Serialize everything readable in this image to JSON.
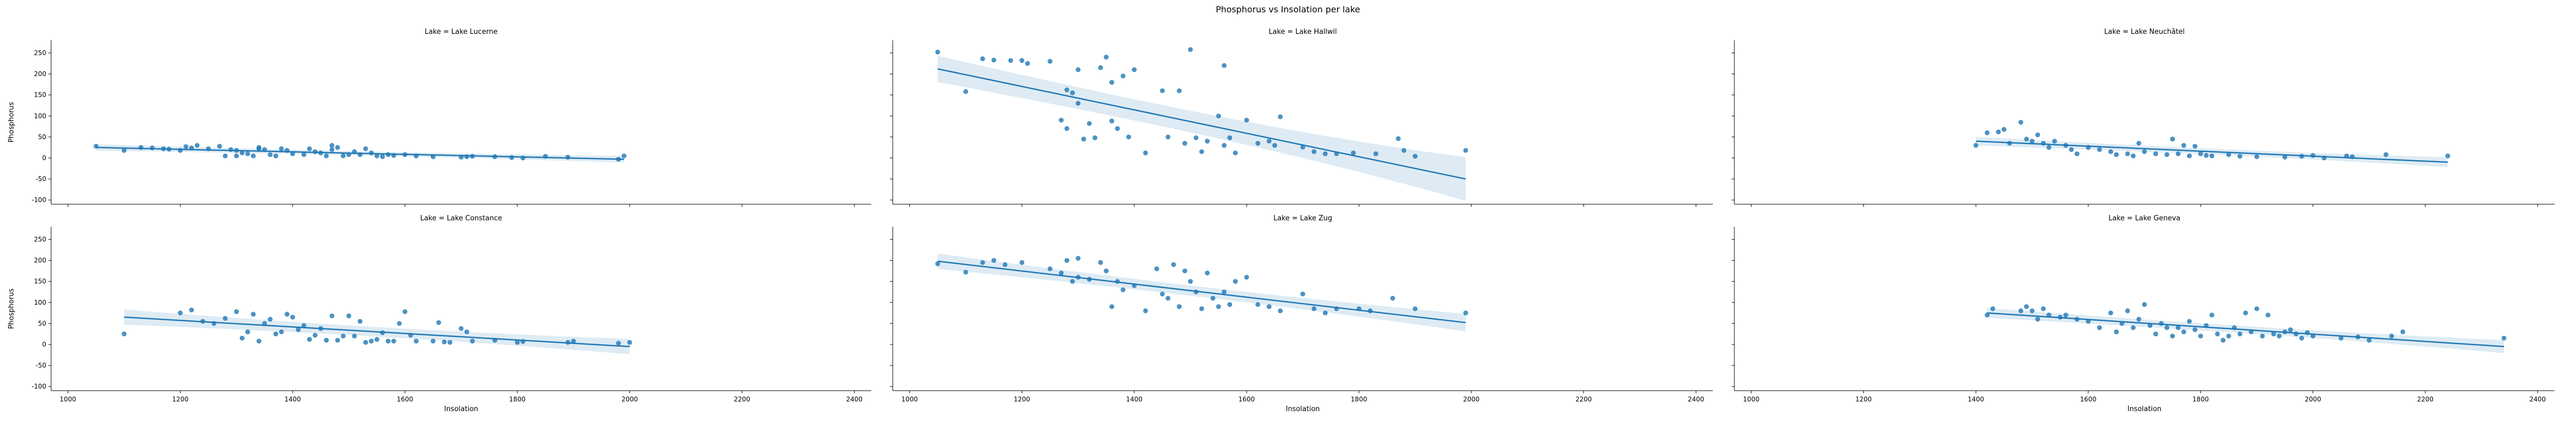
{
  "figure": {
    "title": "Phosphorus vs Insolation per lake"
  },
  "chart_data": [
    {
      "type": "scatter",
      "title": "Lake = Lake Lucerne",
      "xlabel": "",
      "ylabel": "Phosphorus",
      "xlim": [
        970,
        2430
      ],
      "ylim": [
        -110,
        280
      ],
      "xticks": [],
      "yticks": [
        -100,
        -50,
        0,
        50,
        100,
        150,
        200,
        250
      ],
      "points": [
        [
          1050,
          28
        ],
        [
          1100,
          18
        ],
        [
          1130,
          25
        ],
        [
          1150,
          24
        ],
        [
          1170,
          22
        ],
        [
          1180,
          21
        ],
        [
          1200,
          18
        ],
        [
          1210,
          27
        ],
        [
          1220,
          24
        ],
        [
          1230,
          30
        ],
        [
          1250,
          22
        ],
        [
          1270,
          28
        ],
        [
          1280,
          5
        ],
        [
          1290,
          20
        ],
        [
          1300,
          18
        ],
        [
          1300,
          5
        ],
        [
          1310,
          12
        ],
        [
          1320,
          10
        ],
        [
          1330,
          5
        ],
        [
          1340,
          22
        ],
        [
          1340,
          25
        ],
        [
          1350,
          20
        ],
        [
          1360,
          8
        ],
        [
          1370,
          5
        ],
        [
          1380,
          22
        ],
        [
          1390,
          18
        ],
        [
          1400,
          10
        ],
        [
          1420,
          8
        ],
        [
          1430,
          22
        ],
        [
          1440,
          15
        ],
        [
          1450,
          12
        ],
        [
          1460,
          5
        ],
        [
          1470,
          20
        ],
        [
          1470,
          30
        ],
        [
          1480,
          25
        ],
        [
          1490,
          5
        ],
        [
          1500,
          8
        ],
        [
          1510,
          15
        ],
        [
          1520,
          8
        ],
        [
          1530,
          22
        ],
        [
          1540,
          12
        ],
        [
          1550,
          5
        ],
        [
          1560,
          3
        ],
        [
          1570,
          8
        ],
        [
          1580,
          6
        ],
        [
          1600,
          8
        ],
        [
          1620,
          5
        ],
        [
          1650,
          3
        ],
        [
          1700,
          2
        ],
        [
          1710,
          3
        ],
        [
          1720,
          4
        ],
        [
          1760,
          3
        ],
        [
          1790,
          1
        ],
        [
          1810,
          0
        ],
        [
          1850,
          4
        ],
        [
          1890,
          2
        ],
        [
          1980,
          -3
        ],
        [
          1990,
          5
        ]
      ],
      "regression": {
        "x": [
          1050,
          1990
        ],
        "y": [
          25,
          -3
        ],
        "ci_halfwidth": [
          6,
          6
        ]
      },
      "color": "#1f77b4"
    },
    {
      "type": "scatter",
      "title": "Lake = Lake Hallwil",
      "xlabel": "",
      "ylabel": "",
      "xlim": [
        970,
        2430
      ],
      "ylim": [
        -110,
        280
      ],
      "xticks": [],
      "yticks": [],
      "points": [
        [
          1050,
          252
        ],
        [
          1100,
          158
        ],
        [
          1130,
          236
        ],
        [
          1150,
          233
        ],
        [
          1180,
          232
        ],
        [
          1200,
          232
        ],
        [
          1210,
          225
        ],
        [
          1250,
          230
        ],
        [
          1270,
          90
        ],
        [
          1280,
          162
        ],
        [
          1280,
          70
        ],
        [
          1290,
          155
        ],
        [
          1300,
          210
        ],
        [
          1300,
          130
        ],
        [
          1310,
          45
        ],
        [
          1320,
          82
        ],
        [
          1330,
          48
        ],
        [
          1340,
          215
        ],
        [
          1350,
          240
        ],
        [
          1360,
          180
        ],
        [
          1360,
          88
        ],
        [
          1370,
          70
        ],
        [
          1380,
          195
        ],
        [
          1390,
          50
        ],
        [
          1400,
          210
        ],
        [
          1420,
          12
        ],
        [
          1450,
          160
        ],
        [
          1460,
          50
        ],
        [
          1480,
          160
        ],
        [
          1490,
          35
        ],
        [
          1500,
          258
        ],
        [
          1510,
          48
        ],
        [
          1520,
          15
        ],
        [
          1530,
          40
        ],
        [
          1550,
          100
        ],
        [
          1560,
          220
        ],
        [
          1560,
          30
        ],
        [
          1570,
          48
        ],
        [
          1580,
          12
        ],
        [
          1600,
          90
        ],
        [
          1620,
          35
        ],
        [
          1640,
          40
        ],
        [
          1650,
          30
        ],
        [
          1660,
          98
        ],
        [
          1700,
          26
        ],
        [
          1720,
          15
        ],
        [
          1740,
          10
        ],
        [
          1760,
          10
        ],
        [
          1790,
          12
        ],
        [
          1830,
          10
        ],
        [
          1870,
          46
        ],
        [
          1880,
          18
        ],
        [
          1900,
          4
        ],
        [
          1990,
          18
        ]
      ],
      "regression": {
        "x": [
          1050,
          1990
        ],
        "y": [
          212,
          -50
        ],
        "ci_halfwidth": [
          24,
          40
        ]
      },
      "color": "#1f77b4"
    },
    {
      "type": "scatter",
      "title": "Lake = Lake Neuchâtel",
      "xlabel": "",
      "ylabel": "",
      "xlim": [
        970,
        2430
      ],
      "ylim": [
        -110,
        280
      ],
      "xticks": [],
      "yticks": [],
      "points": [
        [
          1400,
          30
        ],
        [
          1420,
          60
        ],
        [
          1440,
          62
        ],
        [
          1450,
          68
        ],
        [
          1460,
          35
        ],
        [
          1480,
          85
        ],
        [
          1490,
          45
        ],
        [
          1500,
          40
        ],
        [
          1510,
          55
        ],
        [
          1520,
          35
        ],
        [
          1530,
          25
        ],
        [
          1540,
          40
        ],
        [
          1560,
          30
        ],
        [
          1570,
          20
        ],
        [
          1580,
          10
        ],
        [
          1600,
          25
        ],
        [
          1620,
          20
        ],
        [
          1640,
          15
        ],
        [
          1650,
          8
        ],
        [
          1670,
          10
        ],
        [
          1680,
          5
        ],
        [
          1690,
          35
        ],
        [
          1700,
          15
        ],
        [
          1720,
          10
        ],
        [
          1740,
          8
        ],
        [
          1750,
          45
        ],
        [
          1760,
          10
        ],
        [
          1770,
          30
        ],
        [
          1780,
          5
        ],
        [
          1790,
          28
        ],
        [
          1800,
          10
        ],
        [
          1810,
          6
        ],
        [
          1820,
          5
        ],
        [
          1850,
          8
        ],
        [
          1870,
          4
        ],
        [
          1900,
          3
        ],
        [
          1950,
          2
        ],
        [
          1980,
          4
        ],
        [
          2000,
          6
        ],
        [
          2020,
          0
        ],
        [
          2060,
          5
        ],
        [
          2070,
          3
        ],
        [
          2130,
          8
        ],
        [
          2240,
          5
        ]
      ],
      "regression": {
        "x": [
          1400,
          2240
        ],
        "y": [
          40,
          -10
        ],
        "ci_halfwidth": [
          8,
          9
        ]
      },
      "color": "#1f77b4"
    },
    {
      "type": "scatter",
      "title": "Lake = Lake Constance",
      "xlabel": "Insolation",
      "ylabel": "Phosphorus",
      "xlim": [
        970,
        2430
      ],
      "ylim": [
        -110,
        280
      ],
      "xticks": [
        1000,
        1200,
        1400,
        1600,
        1800,
        2000,
        2200,
        2400
      ],
      "yticks": [
        -100,
        -50,
        0,
        50,
        100,
        150,
        200,
        250
      ],
      "points": [
        [
          1100,
          25
        ],
        [
          1200,
          75
        ],
        [
          1220,
          82
        ],
        [
          1240,
          55
        ],
        [
          1260,
          50
        ],
        [
          1280,
          62
        ],
        [
          1300,
          78
        ],
        [
          1310,
          15
        ],
        [
          1320,
          30
        ],
        [
          1330,
          72
        ],
        [
          1340,
          8
        ],
        [
          1350,
          50
        ],
        [
          1360,
          60
        ],
        [
          1370,
          25
        ],
        [
          1380,
          30
        ],
        [
          1390,
          72
        ],
        [
          1400,
          65
        ],
        [
          1410,
          35
        ],
        [
          1420,
          45
        ],
        [
          1430,
          12
        ],
        [
          1440,
          22
        ],
        [
          1450,
          38
        ],
        [
          1460,
          10
        ],
        [
          1470,
          68
        ],
        [
          1480,
          10
        ],
        [
          1490,
          20
        ],
        [
          1500,
          68
        ],
        [
          1510,
          20
        ],
        [
          1520,
          55
        ],
        [
          1530,
          5
        ],
        [
          1540,
          8
        ],
        [
          1550,
          12
        ],
        [
          1560,
          28
        ],
        [
          1570,
          8
        ],
        [
          1580,
          8
        ],
        [
          1590,
          50
        ],
        [
          1600,
          78
        ],
        [
          1610,
          22
        ],
        [
          1620,
          8
        ],
        [
          1650,
          8
        ],
        [
          1660,
          52
        ],
        [
          1670,
          6
        ],
        [
          1680,
          5
        ],
        [
          1700,
          38
        ],
        [
          1710,
          30
        ],
        [
          1720,
          8
        ],
        [
          1760,
          10
        ],
        [
          1800,
          5
        ],
        [
          1810,
          7
        ],
        [
          1890,
          5
        ],
        [
          1900,
          8
        ],
        [
          1980,
          3
        ],
        [
          2000,
          5
        ]
      ],
      "regression": {
        "x": [
          1100,
          2000
        ],
        "y": [
          65,
          -5
        ],
        "ci_halfwidth": [
          14,
          14
        ]
      },
      "color": "#1f77b4"
    },
    {
      "type": "scatter",
      "title": "Lake = Lake Zug",
      "xlabel": "Insolation",
      "ylabel": "",
      "xlim": [
        970,
        2430
      ],
      "ylim": [
        -110,
        280
      ],
      "xticks": [
        1000,
        1200,
        1400,
        1600,
        1800,
        2000,
        2200,
        2400
      ],
      "yticks": [],
      "points": [
        [
          1050,
          192
        ],
        [
          1100,
          172
        ],
        [
          1130,
          195
        ],
        [
          1150,
          200
        ],
        [
          1170,
          190
        ],
        [
          1200,
          195
        ],
        [
          1250,
          180
        ],
        [
          1270,
          170
        ],
        [
          1280,
          200
        ],
        [
          1290,
          150
        ],
        [
          1300,
          160
        ],
        [
          1300,
          205
        ],
        [
          1320,
          155
        ],
        [
          1340,
          195
        ],
        [
          1350,
          175
        ],
        [
          1360,
          90
        ],
        [
          1370,
          150
        ],
        [
          1380,
          130
        ],
        [
          1400,
          140
        ],
        [
          1420,
          80
        ],
        [
          1440,
          180
        ],
        [
          1450,
          120
        ],
        [
          1460,
          110
        ],
        [
          1470,
          190
        ],
        [
          1480,
          90
        ],
        [
          1490,
          175
        ],
        [
          1500,
          150
        ],
        [
          1510,
          125
        ],
        [
          1520,
          85
        ],
        [
          1530,
          170
        ],
        [
          1540,
          110
        ],
        [
          1550,
          90
        ],
        [
          1560,
          125
        ],
        [
          1570,
          95
        ],
        [
          1580,
          150
        ],
        [
          1600,
          160
        ],
        [
          1620,
          95
        ],
        [
          1640,
          90
        ],
        [
          1660,
          80
        ],
        [
          1700,
          120
        ],
        [
          1720,
          85
        ],
        [
          1740,
          75
        ],
        [
          1760,
          85
        ],
        [
          1800,
          85
        ],
        [
          1820,
          80
        ],
        [
          1860,
          110
        ],
        [
          1900,
          85
        ],
        [
          1990,
          75
        ]
      ],
      "regression": {
        "x": [
          1050,
          1990
        ],
        "y": [
          198,
          52
        ],
        "ci_halfwidth": [
          14,
          16
        ]
      },
      "color": "#1f77b4"
    },
    {
      "type": "scatter",
      "title": "Lake = Lake Geneva",
      "xlabel": "Insolation",
      "ylabel": "",
      "xlim": [
        970,
        2430
      ],
      "ylim": [
        -110,
        280
      ],
      "xticks": [
        1000,
        1200,
        1400,
        1600,
        1800,
        2000,
        2200,
        2400
      ],
      "yticks": [],
      "points": [
        [
          1420,
          70
        ],
        [
          1430,
          85
        ],
        [
          1480,
          80
        ],
        [
          1490,
          90
        ],
        [
          1500,
          80
        ],
        [
          1510,
          60
        ],
        [
          1520,
          85
        ],
        [
          1530,
          70
        ],
        [
          1550,
          65
        ],
        [
          1560,
          70
        ],
        [
          1580,
          60
        ],
        [
          1600,
          55
        ],
        [
          1620,
          40
        ],
        [
          1640,
          75
        ],
        [
          1650,
          30
        ],
        [
          1660,
          50
        ],
        [
          1670,
          80
        ],
        [
          1680,
          40
        ],
        [
          1690,
          60
        ],
        [
          1700,
          95
        ],
        [
          1710,
          45
        ],
        [
          1720,
          25
        ],
        [
          1730,
          50
        ],
        [
          1740,
          40
        ],
        [
          1750,
          20
        ],
        [
          1760,
          40
        ],
        [
          1770,
          30
        ],
        [
          1780,
          55
        ],
        [
          1790,
          35
        ],
        [
          1800,
          20
        ],
        [
          1810,
          45
        ],
        [
          1820,
          70
        ],
        [
          1830,
          25
        ],
        [
          1840,
          10
        ],
        [
          1850,
          20
        ],
        [
          1860,
          40
        ],
        [
          1870,
          25
        ],
        [
          1880,
          75
        ],
        [
          1890,
          30
        ],
        [
          1900,
          85
        ],
        [
          1910,
          20
        ],
        [
          1920,
          70
        ],
        [
          1930,
          25
        ],
        [
          1940,
          20
        ],
        [
          1950,
          30
        ],
        [
          1960,
          35
        ],
        [
          1970,
          25
        ],
        [
          1980,
          15
        ],
        [
          1990,
          28
        ],
        [
          2000,
          20
        ],
        [
          2050,
          15
        ],
        [
          2080,
          18
        ],
        [
          2100,
          10
        ],
        [
          2140,
          20
        ],
        [
          2160,
          30
        ],
        [
          2340,
          15
        ]
      ],
      "regression": {
        "x": [
          1420,
          2340
        ],
        "y": [
          75,
          -5
        ],
        "ci_halfwidth": [
          9,
          12
        ]
      },
      "color": "#1f77b4"
    }
  ]
}
